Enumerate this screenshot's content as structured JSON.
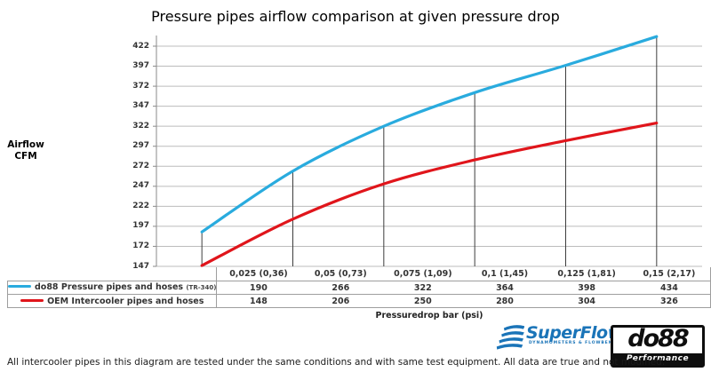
{
  "title": "Pressure pipes airflow comparison at given pressure drop",
  "chart_data": {
    "type": "line",
    "title": "Pressure pipes airflow comparison at given pressure drop",
    "ylabel_lines": [
      "Airflow",
      "CFM"
    ],
    "xlabel": "Pressuredrop bar (psi)",
    "categories": [
      "0,025 (0,36)",
      "0,05 (0,73)",
      "0,075 (1,09)",
      "0,1 (1,45)",
      "0,125 (1,81)",
      "0,15 (2,17)"
    ],
    "series": [
      {
        "name": "do88 Pressure pipes and hoses",
        "name_suffix": "(TR-340)",
        "color": "#29abde",
        "values": [
          190,
          266,
          322,
          364,
          398,
          434
        ]
      },
      {
        "name": "OEM Intercooler pipes and hoses",
        "name_suffix": "",
        "color": "#e0151b",
        "values": [
          148,
          206,
          250,
          280,
          304,
          326
        ]
      }
    ],
    "y_ticks": [
      147,
      172,
      197,
      222,
      247,
      272,
      297,
      322,
      347,
      372,
      397,
      422
    ],
    "ylim": [
      147,
      447
    ],
    "grid": true,
    "gridline_color": "#bcbcbc",
    "axis_color": "#8a8a8a",
    "drop_line_color": "#3d3d3d",
    "legend_position": "table-left"
  },
  "footer": {
    "disclaimer": "All intercooler pipes in this diagram are tested under the same conditions and with same test equipment. All data are true and not modified."
  },
  "logos": {
    "superflow": {
      "name": "SuperFlow",
      "tagline": "DYNAMOMETERS & FLOWBENCHES",
      "color": "#1a74b8"
    },
    "do88": {
      "name": "do88",
      "tagline": "Performance"
    }
  }
}
